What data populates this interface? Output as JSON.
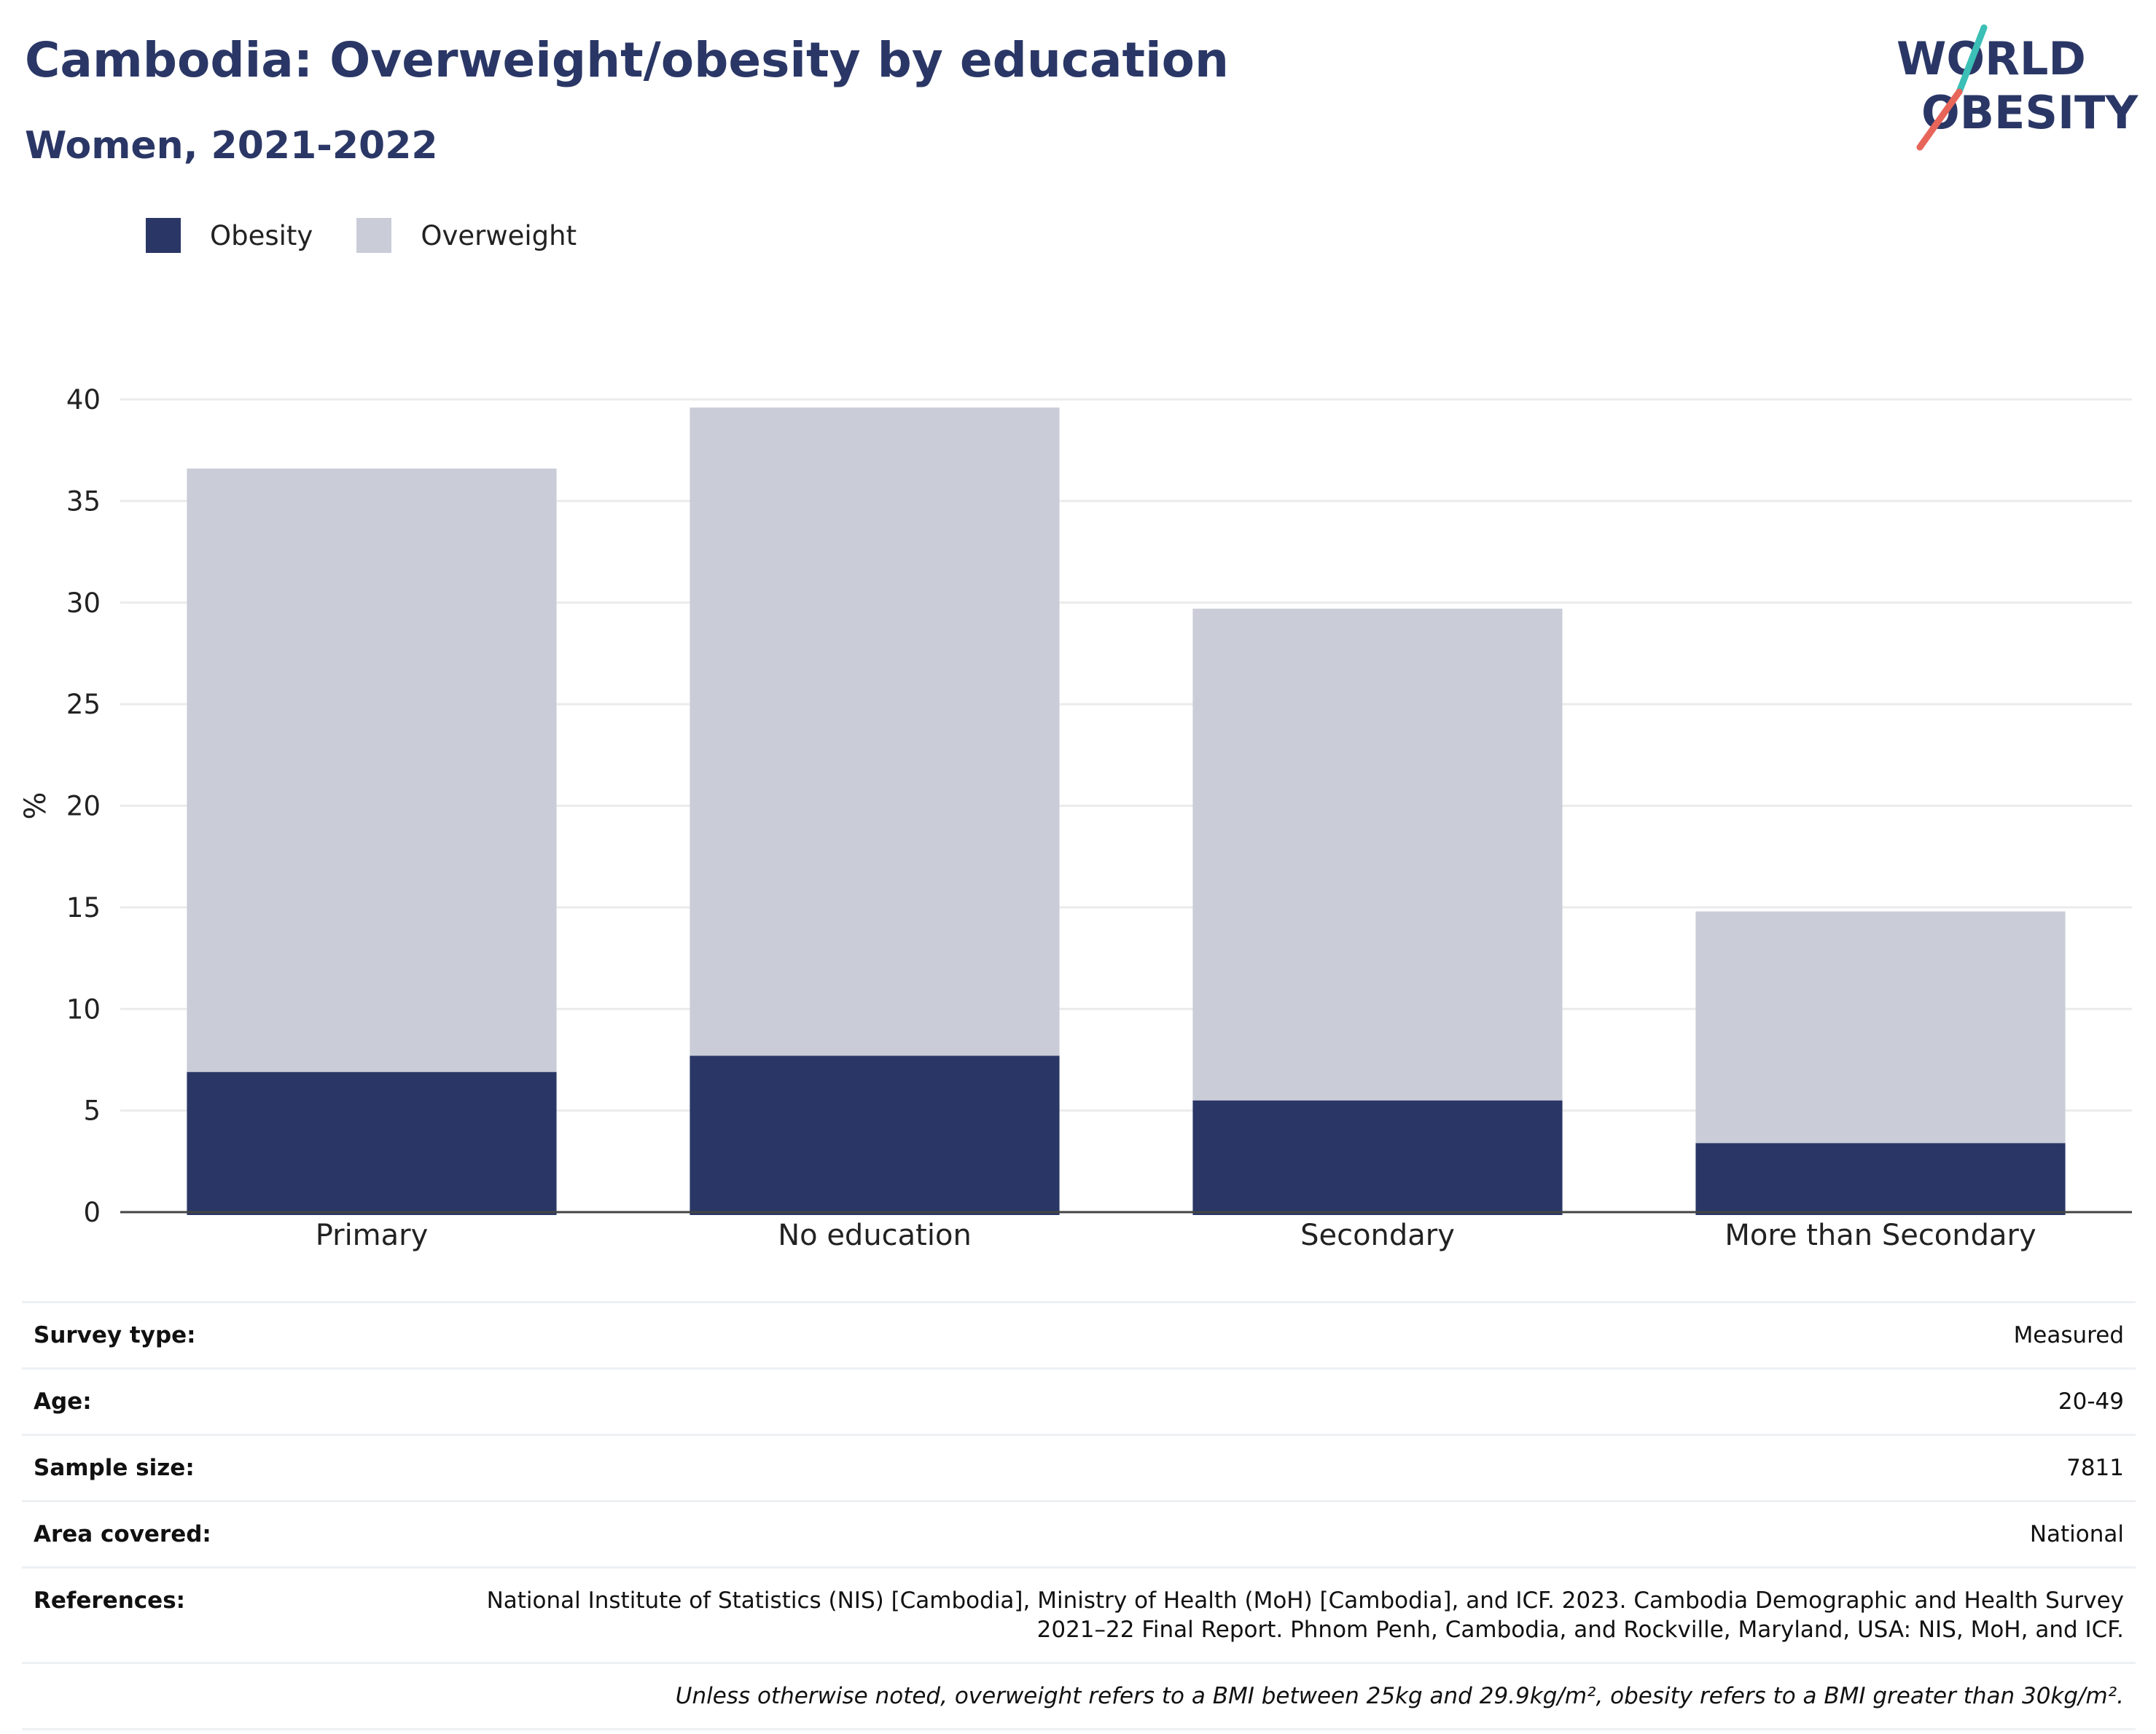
{
  "header": {
    "title": "Cambodia: Overweight/obesity by education",
    "subtitle": "Women, 2021-2022"
  },
  "logo": {
    "line1": "WORLD",
    "line2": "OBESITY",
    "icon": "world-obesity-logo"
  },
  "colors": {
    "obesity": "#2a3766",
    "overweight": "#cacdd8",
    "title": "#2a3766",
    "logo_teal": "#3bbfb6",
    "logo_red": "#e8655a"
  },
  "legend": [
    {
      "label": "Obesity",
      "color": "#2a3766"
    },
    {
      "label": "Overweight",
      "color": "#cacdd8"
    }
  ],
  "chart_data": {
    "type": "bar",
    "stacked": true,
    "categories": [
      "Primary",
      "No education",
      "Secondary",
      "More than Secondary"
    ],
    "series": [
      {
        "name": "Obesity",
        "values": [
          6.9,
          7.7,
          5.5,
          3.4
        ]
      },
      {
        "name": "Overweight",
        "values": [
          29.7,
          31.9,
          24.2,
          11.4
        ]
      }
    ],
    "ylabel": "%",
    "ylim": [
      0,
      40
    ],
    "yticks": [
      0,
      5,
      10,
      15,
      20,
      25,
      30,
      35,
      40
    ],
    "grid": true,
    "legend_position": "top-left"
  },
  "info": [
    {
      "label": "Survey type:",
      "value": "Measured"
    },
    {
      "label": "Age:",
      "value": "20-49"
    },
    {
      "label": "Sample size:",
      "value": "7811"
    },
    {
      "label": "Area covered:",
      "value": "National"
    },
    {
      "label": "References:",
      "value": "National Institute of Statistics (NIS) [Cambodia], Ministry of Health (MoH) [Cambodia], and ICF. 2023. Cambodia Demographic and Health Survey 2021–22 Final Report. Phnom Penh, Cambodia, and Rockville, Maryland, USA: NIS, MoH, and ICF."
    }
  ],
  "note": "Unless otherwise noted, overweight refers to a BMI between 25kg and 29.9kg/m², obesity refers to a BMI greater than 30kg/m²."
}
